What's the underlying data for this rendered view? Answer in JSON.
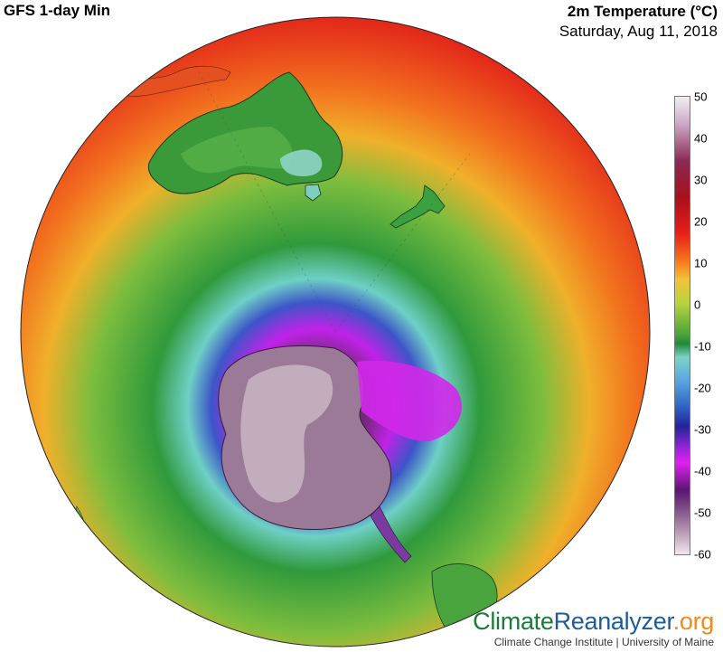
{
  "header": {
    "model_title": "GFS 1-day Min",
    "variable_title": "2m Temperature (°C)",
    "date": "Saturday, Aug 11, 2018"
  },
  "colorbar": {
    "ticks": [
      "50",
      "40",
      "30",
      "20",
      "10",
      "0",
      "-10",
      "-20",
      "-30",
      "-40",
      "-50",
      "-60"
    ],
    "min": -60,
    "max": 50
  },
  "brand": {
    "logo_part1": "Climate",
    "logo_part2": "Reanalyzer",
    "logo_part3": ".org",
    "subtitle": "Climate Change Institute | University of Maine",
    "colors": {
      "part1": "#1b7a3a",
      "part2": "#1d5c96",
      "part3": "#f08a1a"
    }
  },
  "map": {
    "projection": "orthographic",
    "hemisphere": "southern",
    "visible_landmasses": [
      "Australia",
      "New Zealand",
      "Antarctica",
      "South America tip",
      "Tasmania"
    ],
    "colors": {
      "equator_warm": "#e82a18",
      "subtropic": "#f5a020",
      "midlat": "#8ac43e",
      "temperate": "#2f9a3a",
      "polar_edge": "#6fd0c8",
      "cold": "#3c66c8",
      "very_cold": "#b020e0",
      "extreme_cold": "#6a2a6e",
      "core": "#b8a0b0"
    }
  }
}
